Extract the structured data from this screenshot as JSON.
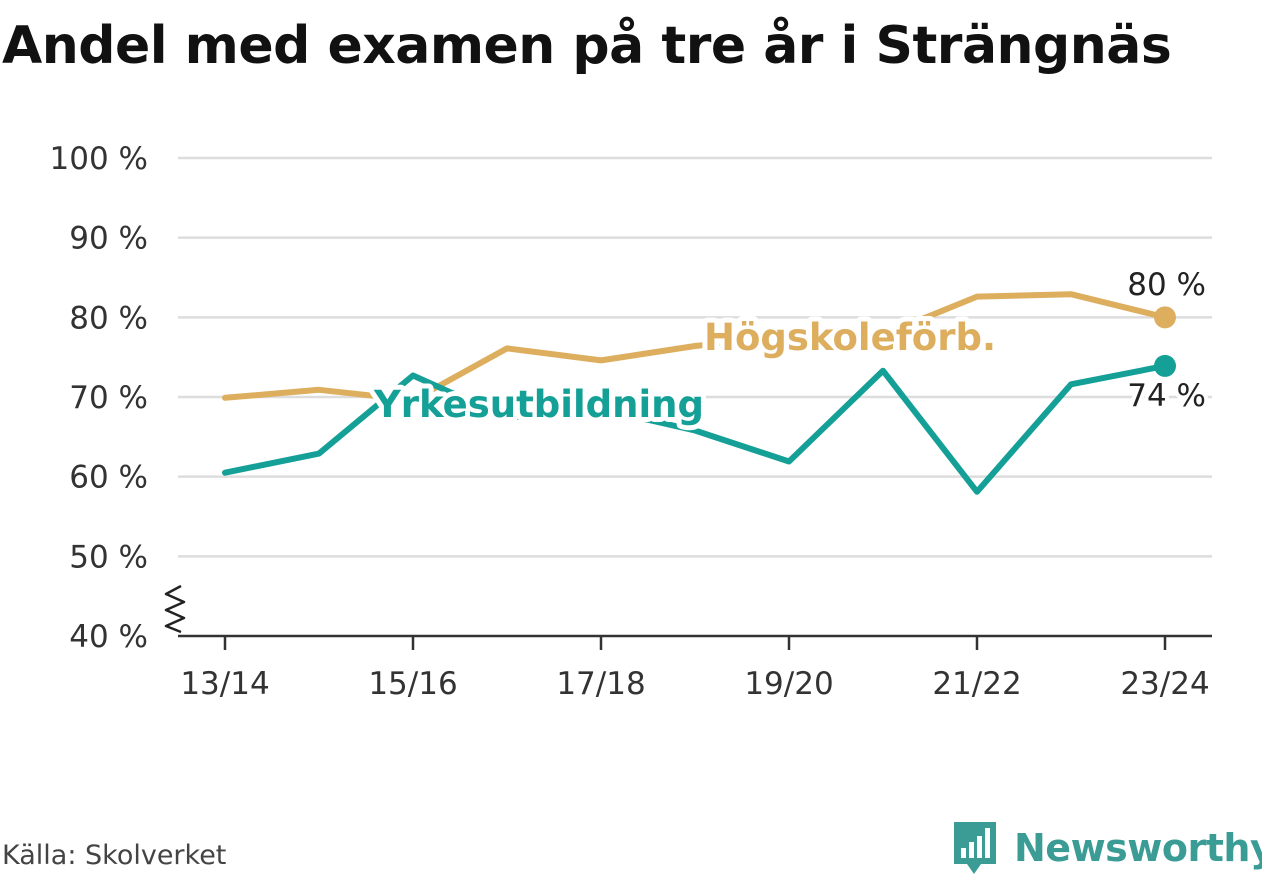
{
  "title": "Andel med examen på tre år i Strängnäs",
  "source": "Källa: Skolverket",
  "brand": {
    "name": "Newsworthy",
    "icon": "newsworthy-chart-bubble-icon",
    "color": "#3b9c95"
  },
  "chart_data": {
    "type": "line",
    "ylim": [
      40,
      100
    ],
    "yticks": [
      "40 %",
      "50 %",
      "60 %",
      "70 %",
      "80 %",
      "90 %",
      "100 %"
    ],
    "y_axis_break": true,
    "grid": true,
    "x": [
      "13/14",
      "14/15",
      "15/16",
      "16/17",
      "17/18",
      "18/19",
      "19/20",
      "20/21",
      "21/22",
      "22/23",
      "23/24"
    ],
    "xtick_labels": [
      "13/14",
      "15/16",
      "17/18",
      "19/20",
      "21/22",
      "23/24"
    ],
    "series": [
      {
        "name": "Högskoleförb.",
        "color": "#dcae5e",
        "values": [
          69.9,
          70.9,
          69.6,
          76.1,
          74.6,
          76.4,
          77.6,
          77.8,
          82.6,
          82.9,
          80.0
        ],
        "end_label": "80 %"
      },
      {
        "name": "Yrkesutbildning",
        "color": "#14a097",
        "values": [
          60.5,
          62.9,
          72.7,
          67.4,
          68.5,
          65.8,
          61.9,
          73.3,
          58.1,
          71.6,
          73.9
        ],
        "end_label": "74 %"
      }
    ]
  }
}
